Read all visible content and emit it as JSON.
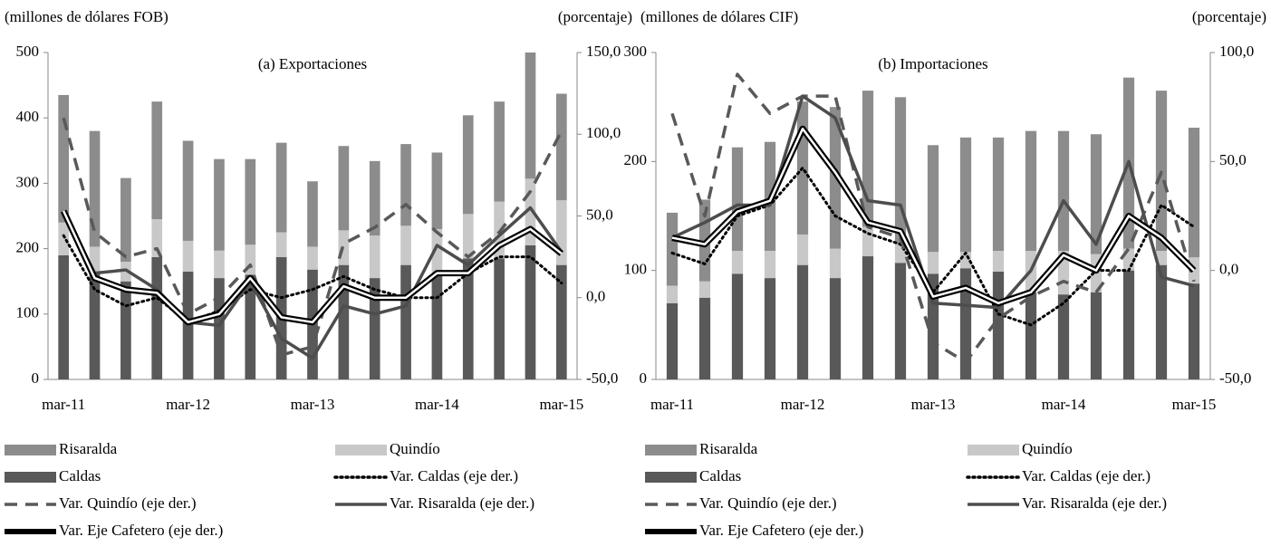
{
  "chart_data": [
    {
      "type": "combo",
      "title": "(a) Exportaciones",
      "ylabel": "(millones de dólares FOB)",
      "y2label": "(porcentaje)",
      "categories": [
        "mar-11",
        null,
        null,
        null,
        "mar-12",
        null,
        null,
        null,
        "mar-13",
        null,
        null,
        null,
        "mar-14",
        null,
        null,
        null,
        "mar-15"
      ],
      "ylim": [
        0,
        500
      ],
      "yticks": [
        0,
        100,
        200,
        300,
        400,
        500
      ],
      "y2lim": [
        -50,
        150
      ],
      "y2ticks": [
        {
          "value": -50,
          "label": "-50,0"
        },
        {
          "value": 0,
          "label": "0,0"
        },
        {
          "value": 50,
          "label": "50,0"
        },
        {
          "value": 100,
          "label": "100,0"
        },
        {
          "value": 150,
          "label": "150,0"
        }
      ],
      "series": [
        {
          "name": "Risaralda",
          "type": "bar",
          "color": "#8c8c8c",
          "values": [
            195,
            177,
            128,
            180,
            153,
            140,
            131,
            137,
            100,
            129,
            114,
            125,
            117,
            151,
            153,
            193,
            163
          ]
        },
        {
          "name": "Quindío",
          "type": "bar",
          "color": "#c8c8c8",
          "values": [
            50,
            38,
            30,
            58,
            47,
            42,
            46,
            38,
            35,
            53,
            65,
            60,
            70,
            68,
            87,
            102,
            99
          ]
        },
        {
          "name": "Caldas",
          "type": "bar",
          "color": "#595959",
          "values": [
            190,
            165,
            150,
            187,
            165,
            155,
            160,
            187,
            168,
            175,
            155,
            175,
            160,
            185,
            185,
            205,
            175
          ]
        },
        {
          "name": "Var. Caldas (eje der.)",
          "type": "line",
          "style": "dotted",
          "axis": "y2",
          "color": "#000000",
          "values": [
            38,
            5,
            -5,
            0,
            -15,
            -8,
            5,
            0,
            5,
            13,
            5,
            0,
            0,
            15,
            25,
            25,
            9
          ]
        },
        {
          "name": "Var. Quindío (eje der.)",
          "type": "line",
          "style": "dashed",
          "axis": "y2",
          "color": "#595959",
          "values": [
            110,
            40,
            25,
            30,
            -10,
            0,
            20,
            -35,
            -30,
            33,
            43,
            57,
            40,
            25,
            40,
            65,
            102
          ]
        },
        {
          "name": "Var. Risaralda (eje der.)",
          "type": "line",
          "style": "solid",
          "axis": "y2",
          "color": "#4d4d4d",
          "values": [
            52,
            15,
            17,
            5,
            -15,
            -17,
            10,
            -25,
            -37,
            -5,
            -10,
            -5,
            32,
            20,
            38,
            55,
            28
          ]
        },
        {
          "name": "Var. Eje Cafetero (eje der.)",
          "type": "line",
          "style": "double",
          "axis": "y2",
          "color": "#000000",
          "values": [
            53,
            12,
            5,
            3,
            -15,
            -10,
            12,
            -12,
            -15,
            7,
            0,
            0,
            15,
            15,
            32,
            42,
            27
          ]
        }
      ]
    },
    {
      "type": "combo",
      "title": "(b) Importaciones",
      "ylabel": "(millones de dólares CIF)",
      "y2label": "(porcentaje)",
      "categories": [
        "mar-11",
        null,
        null,
        null,
        "mar-12",
        null,
        null,
        null,
        "mar-13",
        null,
        null,
        null,
        "mar-14",
        null,
        null,
        null,
        "mar-15"
      ],
      "ylim": [
        0,
        300
      ],
      "yticks": [
        0,
        100,
        200,
        300
      ],
      "y2lim": [
        -50,
        100
      ],
      "y2ticks": [
        {
          "value": -50,
          "label": "-50,0"
        },
        {
          "value": 0,
          "label": "0,0"
        },
        {
          "value": 50,
          "label": "50,0"
        },
        {
          "value": 100,
          "label": "100,0"
        }
      ],
      "series": [
        {
          "name": "Risaralda",
          "type": "bar",
          "color": "#8c8c8c",
          "values": [
            67,
            75,
            95,
            100,
            122,
            130,
            125,
            134,
            98,
            105,
            104,
            110,
            110,
            110,
            157,
            147,
            119
          ]
        },
        {
          "name": "Quindío",
          "type": "bar",
          "color": "#c8c8c8",
          "values": [
            16,
            15,
            21,
            25,
            28,
            27,
            27,
            18,
            20,
            15,
            19,
            38,
            40,
            35,
            20,
            13,
            24
          ]
        },
        {
          "name": "Caldas",
          "type": "bar",
          "color": "#595959",
          "values": [
            70,
            75,
            97,
            93,
            105,
            93,
            113,
            107,
            97,
            102,
            99,
            80,
            78,
            80,
            100,
            105,
            88
          ]
        },
        {
          "name": "Var. Caldas (eje der.)",
          "type": "line",
          "style": "dotted",
          "axis": "y2",
          "color": "#000000",
          "values": [
            8,
            3,
            25,
            30,
            47,
            25,
            17,
            12,
            -10,
            8,
            -20,
            -25,
            -15,
            0,
            0,
            30,
            20
          ]
        },
        {
          "name": "Var. Quindío (eje der.)",
          "type": "line",
          "style": "dashed",
          "axis": "y2",
          "color": "#595959",
          "values": [
            72,
            25,
            90,
            72,
            80,
            80,
            20,
            15,
            -33,
            -42,
            -22,
            -12,
            -5,
            -10,
            10,
            45,
            -5
          ]
        },
        {
          "name": "Var. Risaralda (eje der.)",
          "type": "line",
          "style": "solid",
          "axis": "y2",
          "color": "#4d4d4d",
          "values": [
            15,
            22,
            30,
            30,
            80,
            70,
            32,
            30,
            -15,
            -16,
            -17,
            0,
            32,
            12,
            50,
            -3,
            -7
          ]
        },
        {
          "name": "Var. Eje Cafetero (eje der.)",
          "type": "line",
          "style": "double",
          "axis": "y2",
          "color": "#000000",
          "values": [
            15,
            12,
            27,
            32,
            65,
            45,
            22,
            18,
            -12,
            -8,
            -15,
            -10,
            7,
            0,
            25,
            15,
            0
          ]
        }
      ]
    }
  ]
}
